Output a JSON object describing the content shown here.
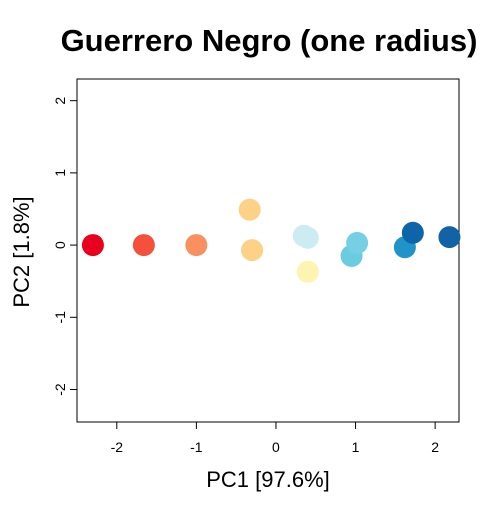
{
  "chart_data": {
    "type": "scatter",
    "title": "Guerrero Negro (one radius)",
    "xlabel": "PC1 [97.6%]",
    "ylabel": "PC2 [1.8%]",
    "xlim": [
      -2.5,
      2.3
    ],
    "ylim": [
      -2.45,
      2.3
    ],
    "xticks": [
      -2,
      -1,
      0,
      1,
      2
    ],
    "yticks": [
      -2,
      -1,
      0,
      1,
      2
    ],
    "grid": false,
    "legend": "none",
    "points": [
      {
        "x": -2.3,
        "y": 0.0,
        "color": "#E8001E"
      },
      {
        "x": -1.66,
        "y": 0.0,
        "color": "#F4503C"
      },
      {
        "x": -1.0,
        "y": 0.0,
        "color": "#F99060"
      },
      {
        "x": -0.33,
        "y": 0.49,
        "color": "#FDD286"
      },
      {
        "x": -0.3,
        "y": -0.07,
        "color": "#FDD286"
      },
      {
        "x": 0.35,
        "y": 0.13,
        "color": "#CDEBF3"
      },
      {
        "x": 0.4,
        "y": 0.1,
        "color": "#CDEBF3"
      },
      {
        "x": 0.4,
        "y": -0.37,
        "color": "#FCF4B0"
      },
      {
        "x": 0.95,
        "y": -0.15,
        "color": "#6BCCE0"
      },
      {
        "x": 1.02,
        "y": 0.03,
        "color": "#76D0E3"
      },
      {
        "x": 1.62,
        "y": -0.03,
        "color": "#2093C9"
      },
      {
        "x": 1.72,
        "y": 0.17,
        "color": "#0D64A8"
      },
      {
        "x": 2.18,
        "y": 0.11,
        "color": "#1262A6"
      }
    ]
  }
}
